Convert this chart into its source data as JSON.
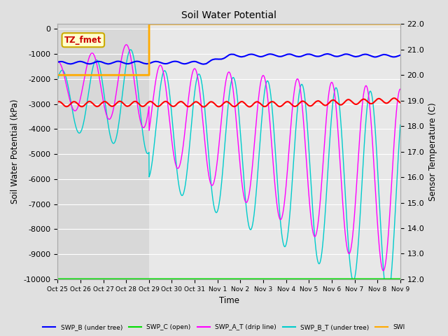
{
  "title": "Soil Water Potential",
  "ylabel_left": "Soil Water Potential (kPa)",
  "ylabel_right": "Sensor Temperature (C)",
  "xlabel": "Time",
  "tick_labels": [
    "Oct 25",
    "Oct 26",
    "Oct 27",
    "Oct 28",
    "Oct 29",
    "Oct 30",
    "Oct 31",
    "Nov 1",
    "Nov 2",
    "Nov 3",
    "Nov 4",
    "Nov 5",
    "Nov 6",
    "Nov 7",
    "Nov 8",
    "Nov 9"
  ],
  "ylim_left": [
    -10000,
    200
  ],
  "ylim_right": [
    12.0,
    22.0
  ],
  "yticks_right": [
    12.0,
    13.0,
    14.0,
    15.0,
    16.0,
    17.0,
    18.0,
    19.0,
    20.0,
    21.0,
    22.0
  ],
  "yticks_left": [
    -10000,
    -9000,
    -8000,
    -7000,
    -6000,
    -5000,
    -4000,
    -3000,
    -2000,
    -1000,
    0
  ],
  "fig_bg": "#e0e0e0",
  "axes_bg": "#d8d8d8",
  "shade_bg": "#e8e8e8",
  "grid_color": "#ffffff",
  "annotation_label": "TZ_fmet",
  "annotation_color": "#cc0000",
  "annotation_bg": "#ffffcc",
  "annotation_border": "#ccaa00",
  "colors": {
    "SWP_A": "#ff0000",
    "SWP_B": "#0000ff",
    "SWP_C": "#00dd00",
    "SWP_A_T": "#ff00ff",
    "SWP_B_T": "#00cccc",
    "SWI": "#ffaa00"
  },
  "legend": [
    {
      "color": "#0000ff",
      "label": "SWP_B (under tree)"
    },
    {
      "color": "#00dd00",
      "label": "SWP_C (open)"
    },
    {
      "color": "#ff00ff",
      "label": "SWP_A_T (drip line)"
    },
    {
      "color": "#00cccc",
      "label": "SWP_B_T (under tree)"
    },
    {
      "color": "#ffaa00",
      "label": "SWI"
    }
  ]
}
